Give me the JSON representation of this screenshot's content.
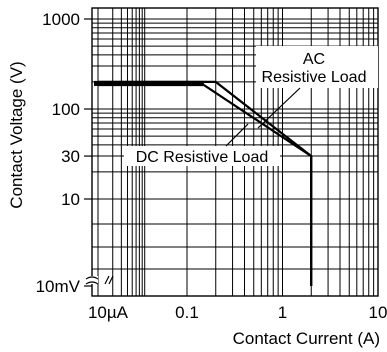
{
  "chart_data": {
    "type": "line",
    "xlabel": "Contact Current (A)",
    "ylabel": "Contact Voltage (V)",
    "xscale": "log",
    "yscale": "log",
    "grid": true,
    "y_axis_break": true,
    "x_ticks": [
      {
        "value": 1e-05,
        "label": "10µA"
      },
      {
        "value": 0.1,
        "label": "0.1"
      },
      {
        "value": 1,
        "label": "1"
      },
      {
        "value": 10,
        "label": "10"
      }
    ],
    "y_ticks": [
      {
        "value": 1000,
        "label": "1000"
      },
      {
        "value": 100,
        "label": "100"
      },
      {
        "value": 30,
        "label": "30"
      },
      {
        "value": 10,
        "label": "10"
      },
      {
        "value": 0.01,
        "label": "10mV"
      }
    ],
    "series": [
      {
        "name": "AC Resistive Load",
        "label_lines": [
          "AC",
          "Resistive Load"
        ],
        "points": [
          [
            1e-05,
            200
          ],
          [
            0.2,
            200
          ],
          [
            2,
            30
          ],
          [
            2,
            0.01
          ]
        ]
      },
      {
        "name": "DC Resistive Load",
        "label_lines": [
          "DC Resistive Load"
        ],
        "points": [
          [
            1e-05,
            185
          ],
          [
            0.15,
            185
          ],
          [
            2,
            30
          ],
          [
            2,
            0.01
          ]
        ]
      }
    ]
  }
}
